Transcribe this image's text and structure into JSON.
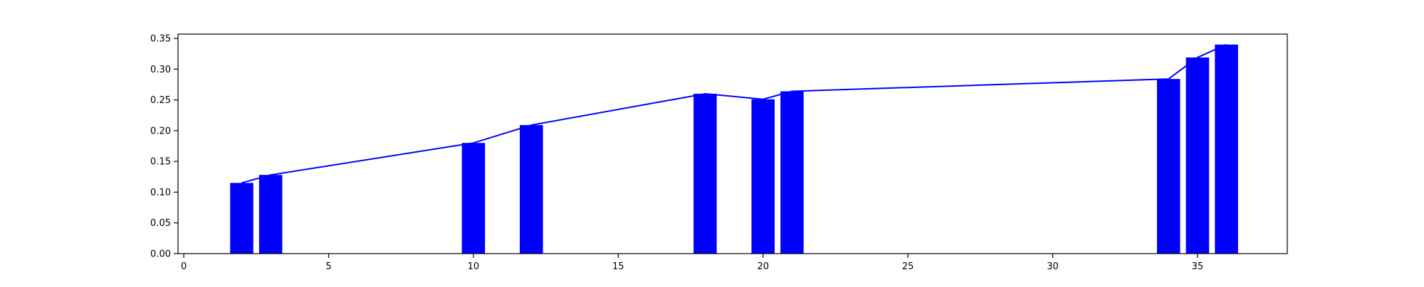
{
  "chart_data": {
    "type": "bar",
    "x": [
      2,
      3,
      10,
      12,
      18,
      20,
      21,
      34,
      35,
      36
    ],
    "values": [
      0.115,
      0.128,
      0.18,
      0.209,
      0.26,
      0.251,
      0.264,
      0.284,
      0.319,
      0.34
    ],
    "overlay_line": {
      "type": "line",
      "x": [
        2,
        3,
        10,
        12,
        18,
        20,
        21,
        34,
        35,
        36
      ],
      "values": [
        0.115,
        0.128,
        0.18,
        0.209,
        0.26,
        0.251,
        0.264,
        0.284,
        0.319,
        0.34
      ]
    },
    "title": "",
    "xlabel": "",
    "ylabel": "",
    "xlim": [
      -0.2,
      38.1
    ],
    "ylim": [
      0,
      0.357
    ],
    "xticks": [
      0,
      5,
      10,
      15,
      20,
      25,
      30,
      35
    ],
    "yticks": [
      0.0,
      0.05,
      0.1,
      0.15,
      0.2,
      0.25,
      0.3,
      0.35
    ],
    "xtick_labels": [
      "0",
      "5",
      "10",
      "15",
      "20",
      "25",
      "30",
      "35"
    ],
    "ytick_labels": [
      "0.00",
      "0.05",
      "0.10",
      "0.15",
      "0.20",
      "0.25",
      "0.30",
      "0.35"
    ],
    "bar_width": 0.8,
    "grid": false,
    "legend": "none",
    "colors": {
      "bar": "#0000ff",
      "line": "#0000ff",
      "axes": "#000000"
    }
  }
}
